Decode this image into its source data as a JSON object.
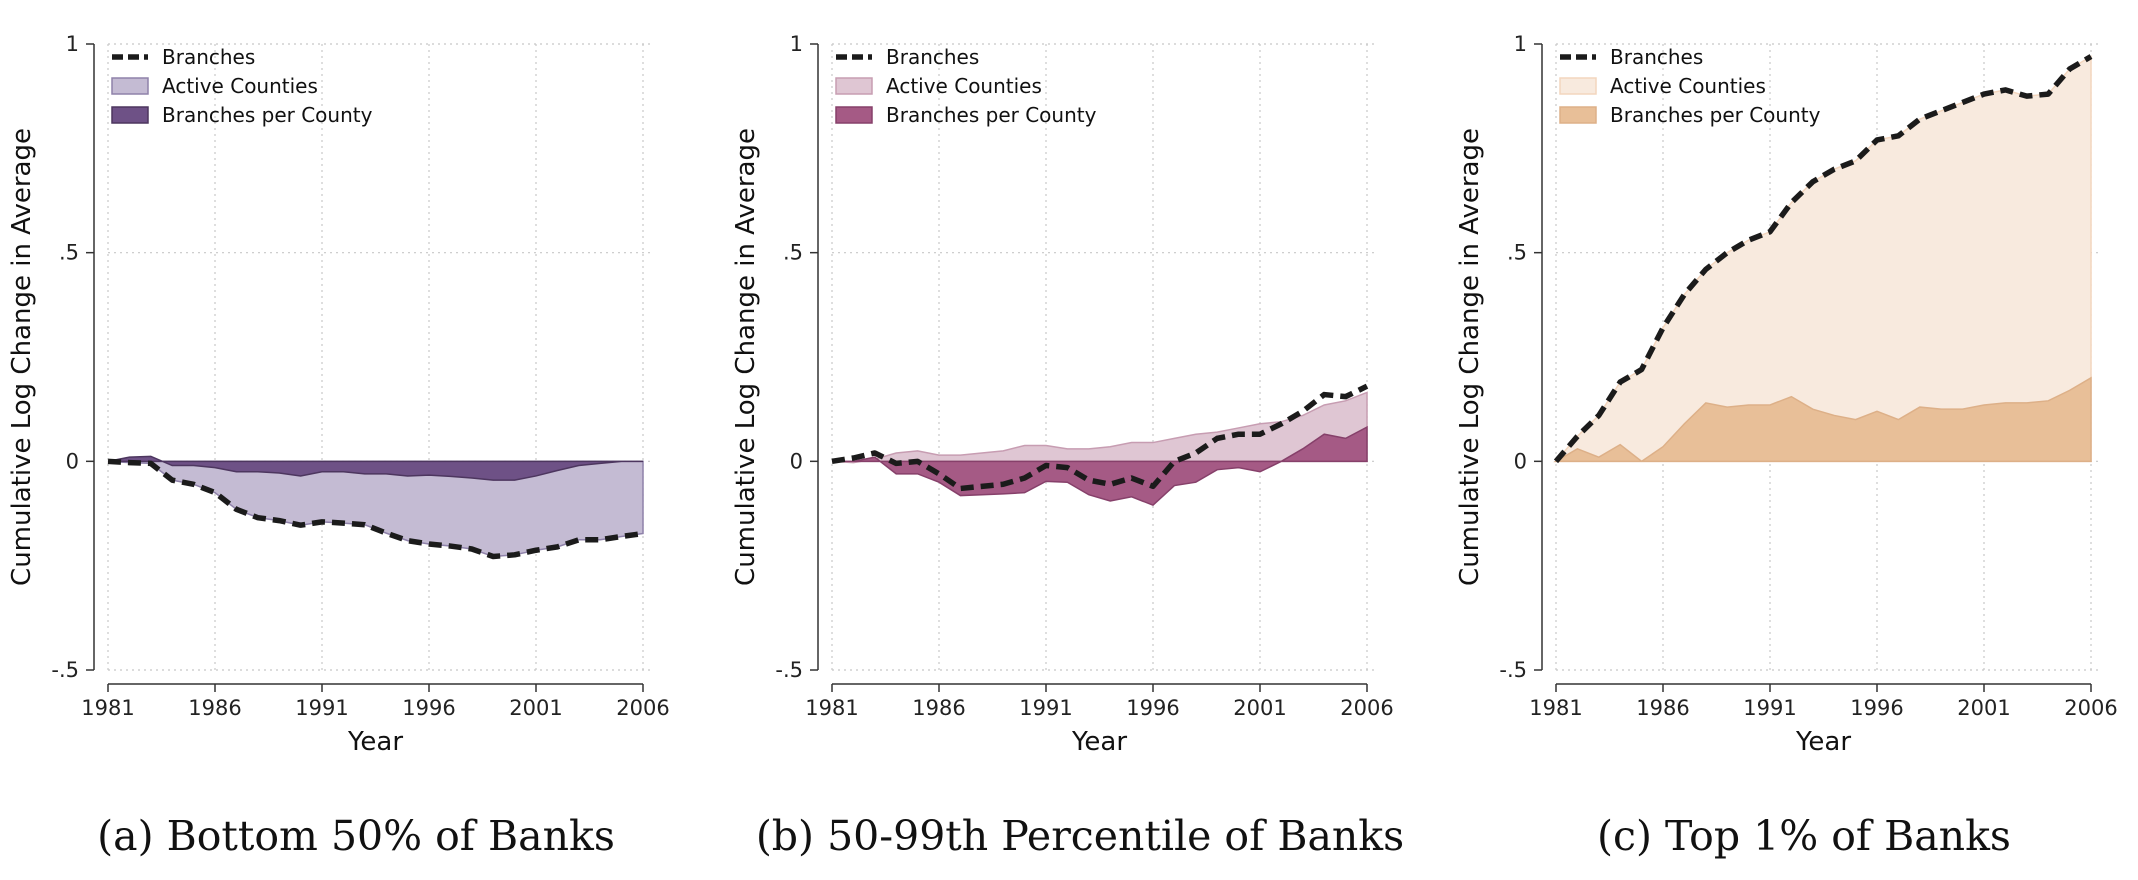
{
  "chart_data": [
    {
      "type": "area",
      "caption": "(a) Bottom 50% of Banks",
      "xlabel": "Year",
      "ylabel": "Cumulative Log Change in Average",
      "xlim": [
        1981,
        2006
      ],
      "ylim": [
        -0.5,
        1
      ],
      "xticks": [
        1981,
        1986,
        1991,
        1996,
        2001,
        2006
      ],
      "yticks": [
        -0.5,
        0,
        0.5,
        1
      ],
      "ytick_labels": [
        "-.5",
        "0",
        ".5",
        "1"
      ],
      "grid": true,
      "legend_position": "top-left",
      "legend": [
        "Branches",
        "Active Counties",
        "Branches per County"
      ],
      "colors": {
        "active": "#c4bbd3",
        "active_edge": "#8f82aa",
        "per_county": "#6e5186",
        "per_county_edge": "#4d365f"
      },
      "x": [
        1981,
        1982,
        1983,
        1984,
        1985,
        1986,
        1987,
        1988,
        1989,
        1990,
        1991,
        1992,
        1993,
        1994,
        1995,
        1996,
        1997,
        1998,
        1999,
        2000,
        2001,
        2002,
        2003,
        2004,
        2005,
        2006
      ],
      "series": [
        {
          "name": "Branches",
          "values": [
            0,
            -0.003,
            -0.005,
            -0.045,
            -0.055,
            -0.075,
            -0.115,
            -0.135,
            -0.142,
            -0.153,
            -0.145,
            -0.148,
            -0.152,
            -0.172,
            -0.19,
            -0.198,
            -0.203,
            -0.21,
            -0.228,
            -0.224,
            -0.213,
            -0.205,
            -0.188,
            -0.188,
            -0.18,
            -0.173
          ]
        },
        {
          "name": "Active Counties",
          "values": [
            0,
            -0.003,
            -0.005,
            -0.045,
            -0.055,
            -0.075,
            -0.115,
            -0.135,
            -0.142,
            -0.153,
            -0.145,
            -0.148,
            -0.152,
            -0.172,
            -0.19,
            -0.198,
            -0.203,
            -0.21,
            -0.228,
            -0.224,
            -0.213,
            -0.205,
            -0.188,
            -0.188,
            -0.18,
            -0.173
          ]
        },
        {
          "name": "Branches per County",
          "values": [
            0,
            0.01,
            0.012,
            -0.01,
            -0.01,
            -0.015,
            -0.025,
            -0.025,
            -0.028,
            -0.035,
            -0.025,
            -0.025,
            -0.03,
            -0.03,
            -0.035,
            -0.033,
            -0.036,
            -0.04,
            -0.045,
            -0.045,
            -0.035,
            -0.022,
            -0.01,
            -0.005,
            0,
            0
          ]
        }
      ]
    },
    {
      "type": "area",
      "caption": "(b) 50-99th Percentile of Banks",
      "xlabel": "Year",
      "ylabel": "Cumulative Log Change in Average",
      "xlim": [
        1981,
        2006
      ],
      "ylim": [
        -0.5,
        1
      ],
      "xticks": [
        1981,
        1986,
        1991,
        1996,
        2001,
        2006
      ],
      "yticks": [
        -0.5,
        0,
        0.5,
        1
      ],
      "ytick_labels": [
        "-.5",
        "0",
        ".5",
        "1"
      ],
      "grid": true,
      "legend_position": "top-left",
      "legend": [
        "Branches",
        "Active Counties",
        "Branches per County"
      ],
      "colors": {
        "active": "#dfc6d3",
        "active_edge": "#c79db2",
        "per_county": "#a55a85",
        "per_county_edge": "#86406a"
      },
      "x": [
        1981,
        1982,
        1983,
        1984,
        1985,
        1986,
        1987,
        1988,
        1989,
        1990,
        1991,
        1992,
        1993,
        1994,
        1995,
        1996,
        1997,
        1998,
        1999,
        2000,
        2001,
        2002,
        2003,
        2004,
        2005,
        2006
      ],
      "series": [
        {
          "name": "Branches",
          "values": [
            0,
            0.008,
            0.02,
            -0.005,
            0.0,
            -0.03,
            -0.065,
            -0.06,
            -0.055,
            -0.04,
            -0.01,
            -0.015,
            -0.045,
            -0.055,
            -0.04,
            -0.06,
            0.0,
            0.02,
            0.055,
            0.065,
            0.065,
            0.09,
            0.12,
            0.16,
            0.155,
            0.18
          ]
        },
        {
          "name": "Active Counties",
          "values": [
            0,
            -0.003,
            0.005,
            0.02,
            0.025,
            0.015,
            0.015,
            0.02,
            0.025,
            0.038,
            0.038,
            0.03,
            0.03,
            0.035,
            0.045,
            0.045,
            0.055,
            0.065,
            0.07,
            0.08,
            0.09,
            0.095,
            0.11,
            0.135,
            0.145,
            0.165
          ]
        },
        {
          "name": "Branches per County",
          "values": [
            0,
            0.0,
            0.01,
            -0.03,
            -0.03,
            -0.05,
            -0.082,
            -0.08,
            -0.078,
            -0.075,
            -0.048,
            -0.05,
            -0.08,
            -0.095,
            -0.085,
            -0.105,
            -0.058,
            -0.05,
            -0.02,
            -0.015,
            -0.025,
            0.0,
            0.03,
            0.065,
            0.055,
            0.082
          ]
        }
      ]
    },
    {
      "type": "area",
      "caption": "(c) Top 1% of Banks",
      "xlabel": "Year",
      "ylabel": "Cumulative Log Change in Average",
      "xlim": [
        1981,
        2006
      ],
      "ylim": [
        -0.5,
        1
      ],
      "xticks": [
        1981,
        1986,
        1991,
        1996,
        2001,
        2006
      ],
      "yticks": [
        -0.5,
        0,
        0.5,
        1
      ],
      "ytick_labels": [
        "-.5",
        "0",
        ".5",
        "1"
      ],
      "grid": true,
      "legend_position": "top-left",
      "legend": [
        "Branches",
        "Active Counties",
        "Branches per County"
      ],
      "colors": {
        "active": "#f8eade",
        "active_edge": "#f3d6be",
        "per_county": "#e8bf98",
        "per_county_edge": "#ddb088"
      },
      "x": [
        1981,
        1982,
        1983,
        1984,
        1985,
        1986,
        1987,
        1988,
        1989,
        1990,
        1991,
        1992,
        1993,
        1994,
        1995,
        1996,
        1997,
        1998,
        1999,
        2000,
        2001,
        2002,
        2003,
        2004,
        2005,
        2006
      ],
      "series": [
        {
          "name": "Branches",
          "values": [
            0,
            0.06,
            0.11,
            0.19,
            0.22,
            0.32,
            0.4,
            0.46,
            0.5,
            0.53,
            0.55,
            0.62,
            0.67,
            0.7,
            0.72,
            0.77,
            0.78,
            0.82,
            0.84,
            0.86,
            0.88,
            0.89,
            0.875,
            0.88,
            0.94,
            0.97
          ]
        },
        {
          "name": "Active Counties",
          "values": [
            0,
            0.06,
            0.11,
            0.19,
            0.22,
            0.32,
            0.4,
            0.46,
            0.5,
            0.53,
            0.55,
            0.62,
            0.67,
            0.7,
            0.72,
            0.77,
            0.78,
            0.82,
            0.84,
            0.86,
            0.88,
            0.89,
            0.875,
            0.88,
            0.94,
            0.97
          ]
        },
        {
          "name": "Branches per County",
          "values": [
            0,
            0.03,
            0.01,
            0.04,
            0.0,
            0.035,
            0.09,
            0.14,
            0.13,
            0.135,
            0.135,
            0.155,
            0.125,
            0.11,
            0.1,
            0.12,
            0.1,
            0.13,
            0.125,
            0.125,
            0.135,
            0.14,
            0.14,
            0.145,
            0.17,
            0.2
          ]
        }
      ]
    }
  ]
}
